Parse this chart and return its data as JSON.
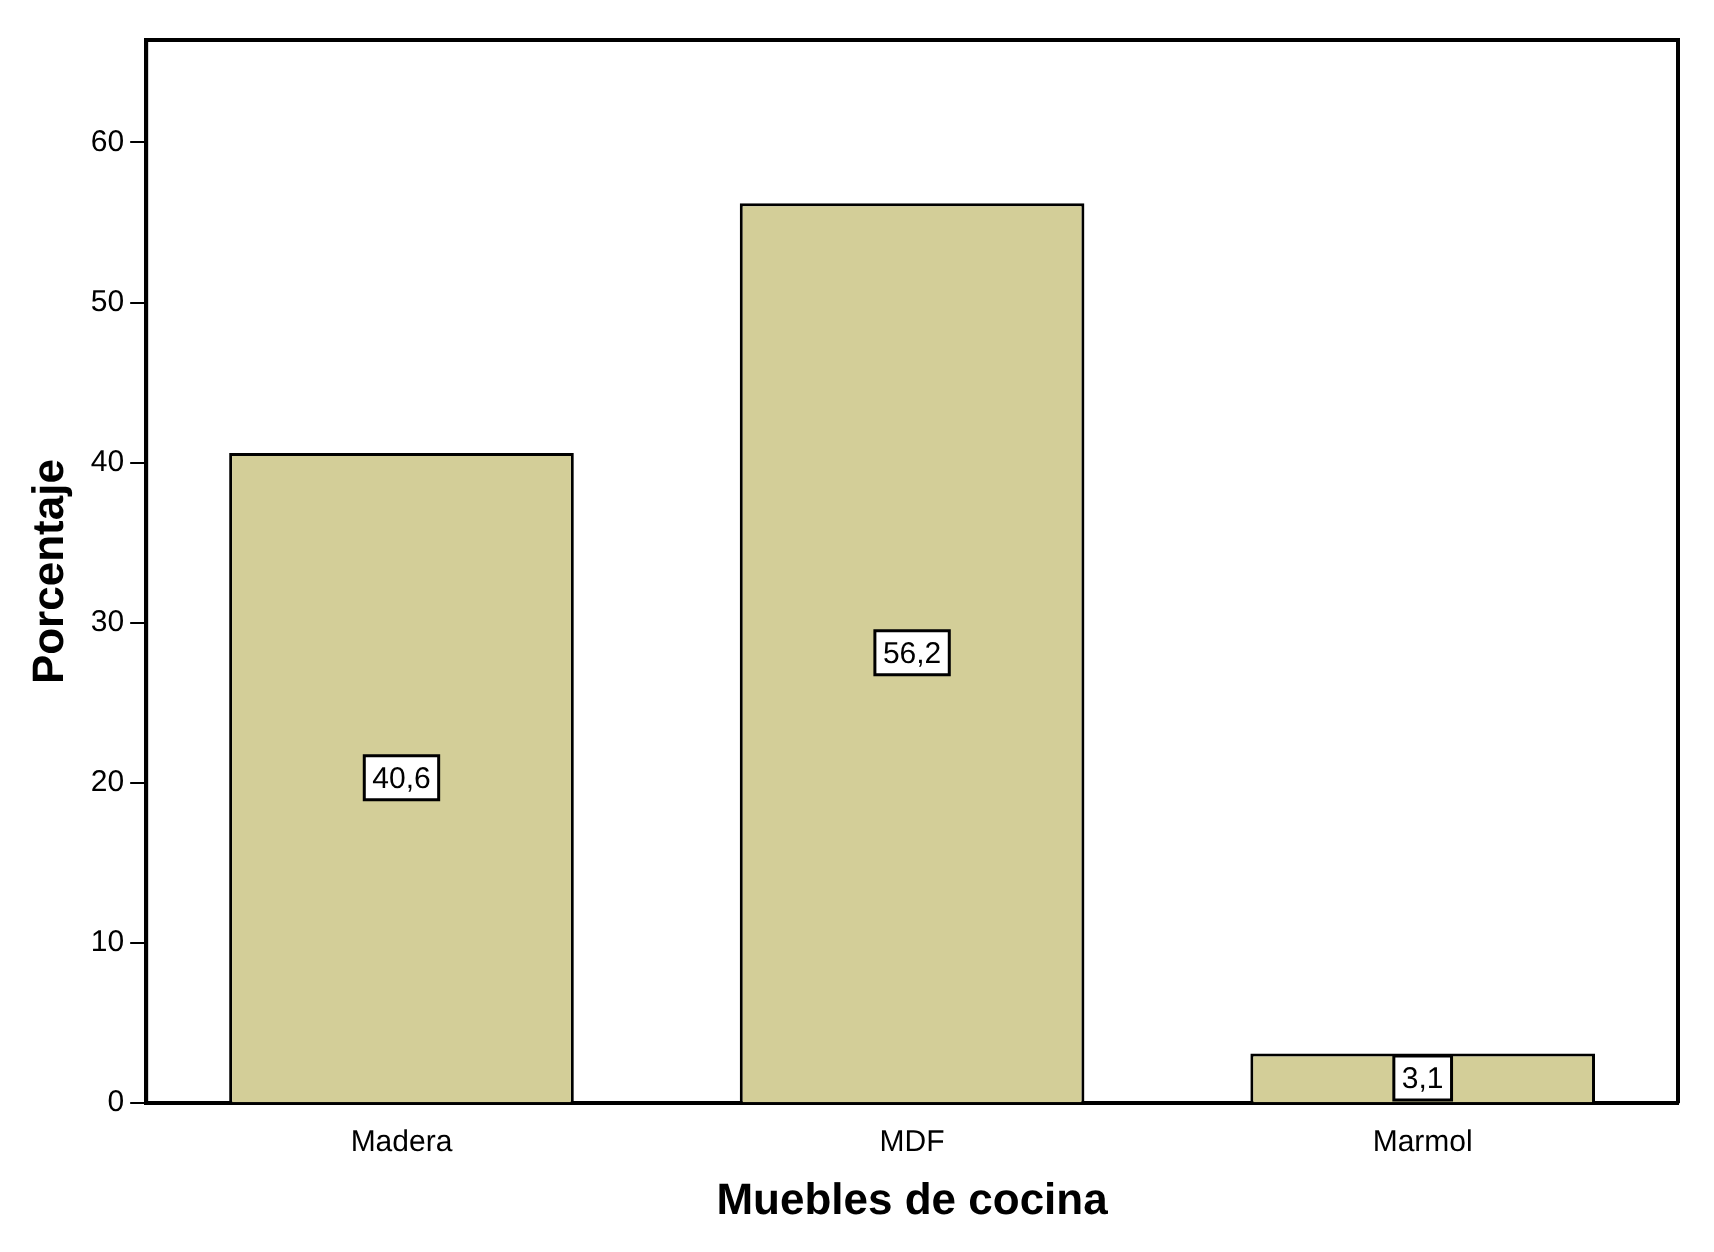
{
  "chart_data": {
    "type": "bar",
    "xlabel": "Muebles de cocina",
    "ylabel": "Porcentaje",
    "categories": [
      "Madera",
      "MDF",
      "Marmol"
    ],
    "values": [
      40.6,
      56.2,
      3.1
    ],
    "value_labels": [
      "40,6",
      "56,2",
      "3,1"
    ],
    "color": "#d3ce98",
    "ylim": [
      0,
      66.4
    ],
    "yticks": [
      0,
      10,
      20,
      30,
      40,
      50,
      60
    ],
    "grid": false,
    "legend": false
  }
}
